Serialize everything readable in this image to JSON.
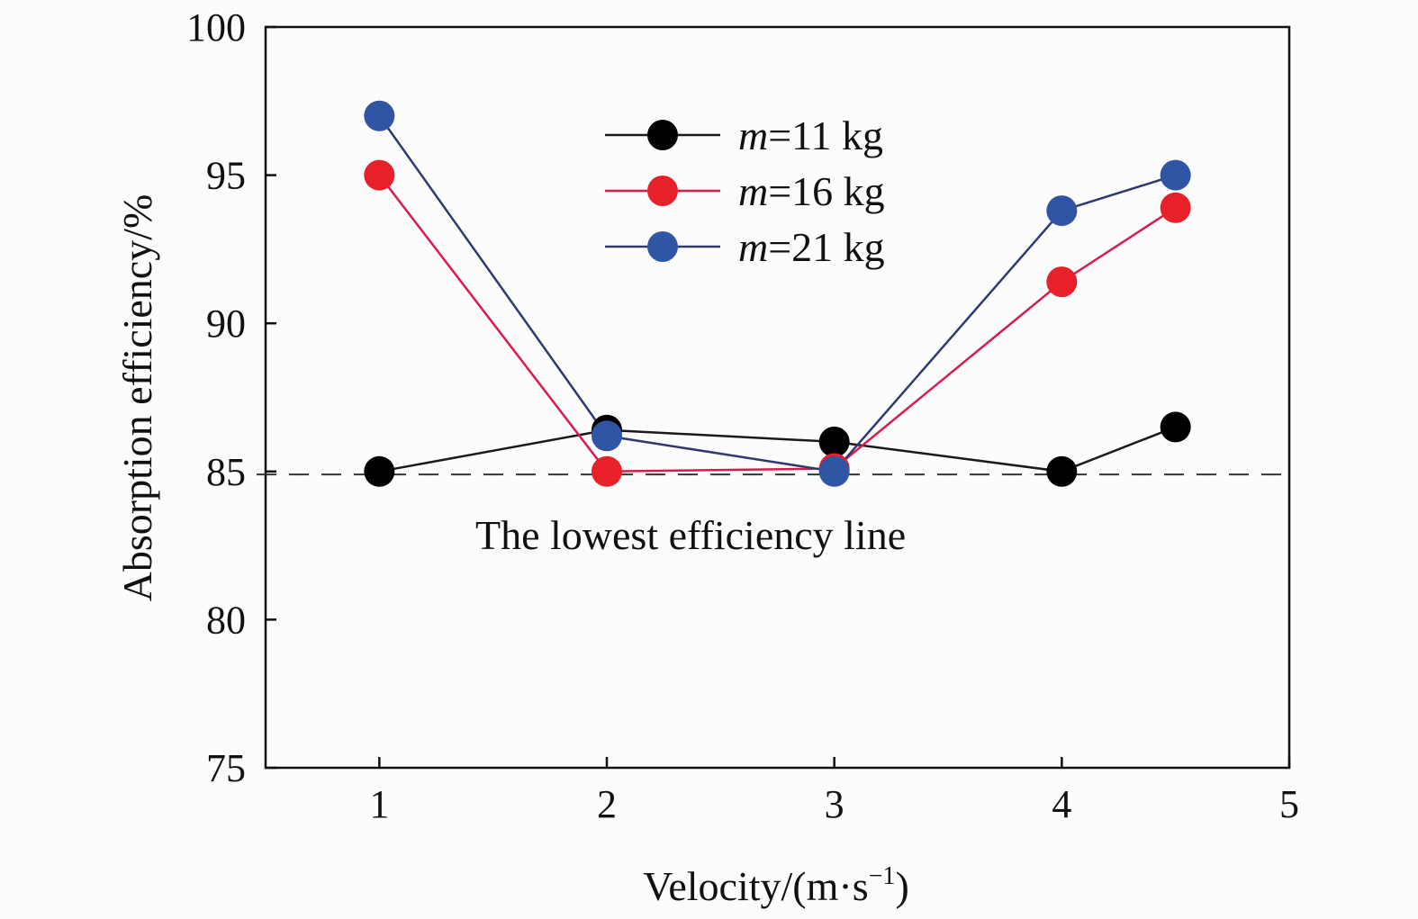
{
  "chart_data": {
    "type": "line",
    "x": [
      1,
      2,
      3,
      4,
      4.5
    ],
    "xlabel_main": "Velocity/(m·s",
    "xlabel_sup": "−1",
    "xlabel_close": ")",
    "ylabel": "Absorption efficiency/%",
    "xlim": [
      0.5,
      5
    ],
    "ylim": [
      75,
      100
    ],
    "xticks": [
      "1",
      "2",
      "3",
      "4",
      "5"
    ],
    "yticks": [
      "75",
      "80",
      "85",
      "90",
      "95",
      "100"
    ],
    "series": [
      {
        "name_var": "m",
        "name_rest": "=11 kg",
        "color": "#000000",
        "line_color": "#1a1a1a",
        "values": [
          85.0,
          86.4,
          86.0,
          85.0,
          86.5
        ]
      },
      {
        "name_var": "m",
        "name_rest": "=16 kg",
        "color": "#e8202a",
        "line_color": "#d81b4f",
        "values": [
          95.0,
          85.0,
          85.1,
          91.4,
          93.9
        ]
      },
      {
        "name_var": "m",
        "name_rest": "=21 kg",
        "color": "#2f55a4",
        "line_color": "#2e3a6e",
        "values": [
          97.0,
          86.2,
          85.0,
          93.8,
          95.0
        ]
      }
    ],
    "reference_line": {
      "y": 84.9,
      "label": "The lowest efficiency line"
    },
    "grid": false,
    "legend_position": "top-center"
  }
}
